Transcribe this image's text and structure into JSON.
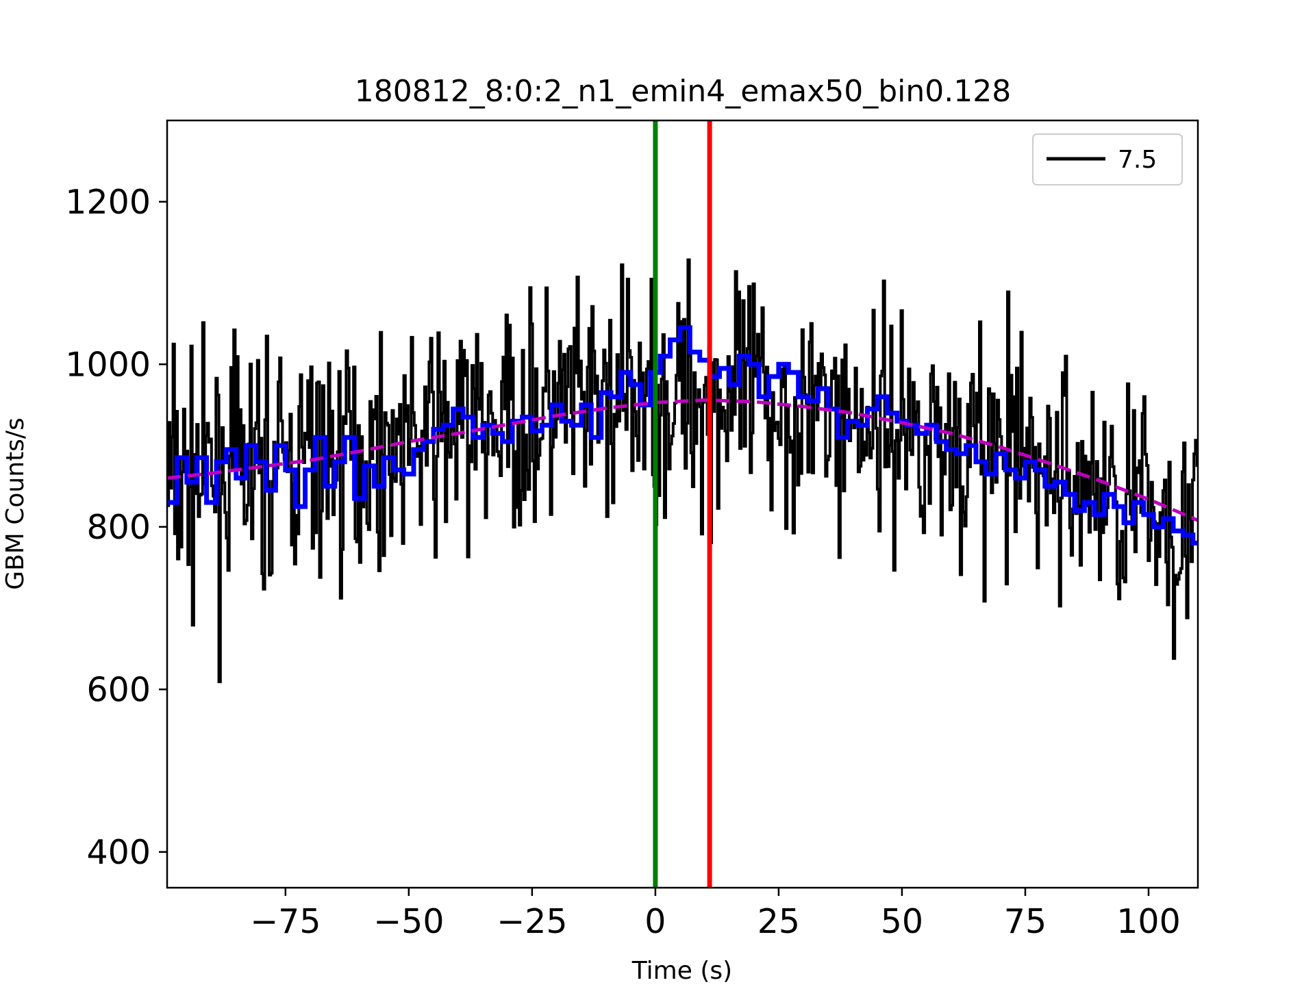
{
  "chart_data": {
    "type": "line",
    "title": "180812_8:0:2_n1_emin4_emax50_bin0.128",
    "xlabel": "Time (s)",
    "ylabel": "GBM Counts/s",
    "xlim": [
      -99,
      110
    ],
    "ylim": [
      356,
      1300
    ],
    "xticks": [
      -75,
      -50,
      -25,
      0,
      25,
      50,
      75,
      100
    ],
    "xtick_labels": [
      "−75",
      "−50",
      "−25",
      "0",
      "25",
      "50",
      "75",
      "100"
    ],
    "yticks": [
      400,
      600,
      800,
      1000,
      1200
    ],
    "ytick_labels": [
      "400",
      "600",
      "800",
      "1000",
      "1200"
    ],
    "grid": false,
    "legend": {
      "placement": "top-right",
      "entries": [
        {
          "label": "7.5",
          "color": "#000000"
        }
      ]
    },
    "vertical_lines": [
      {
        "x": 0,
        "color": "#008000"
      },
      {
        "x": 11,
        "color": "#ff0000"
      }
    ],
    "series": [
      {
        "role": "counts",
        "color": "#000000",
        "style": "solid",
        "bin_width": 0.128,
        "trend": [
          [
            -99,
            858
          ],
          [
            -75,
            874
          ],
          [
            -50,
            905
          ],
          [
            -25,
            935
          ],
          [
            0,
            958
          ],
          [
            10,
            962
          ],
          [
            25,
            950
          ],
          [
            50,
            925
          ],
          [
            75,
            880
          ],
          [
            100,
            820
          ],
          [
            110,
            806
          ]
        ],
        "noise_sd": 95
      },
      {
        "role": "smoothed",
        "color": "#0000ff",
        "style": "step",
        "points": [
          [
            -99,
            830
          ],
          [
            -97,
            885
          ],
          [
            -95,
            855
          ],
          [
            -93,
            885
          ],
          [
            -91,
            830
          ],
          [
            -89,
            880
          ],
          [
            -87,
            895
          ],
          [
            -85,
            860
          ],
          [
            -83,
            900
          ],
          [
            -81,
            880
          ],
          [
            -79,
            845
          ],
          [
            -77,
            900
          ],
          [
            -75,
            870
          ],
          [
            -73,
            825
          ],
          [
            -71,
            870
          ],
          [
            -69,
            910
          ],
          [
            -67,
            850
          ],
          [
            -65,
            880
          ],
          [
            -63,
            910
          ],
          [
            -61,
            835
          ],
          [
            -59,
            875
          ],
          [
            -57,
            850
          ],
          [
            -55,
            885
          ],
          [
            -53,
            870
          ],
          [
            -51,
            865
          ],
          [
            -49,
            895
          ],
          [
            -47,
            905
          ],
          [
            -45,
            920
          ],
          [
            -43,
            925
          ],
          [
            -41,
            945
          ],
          [
            -39,
            935
          ],
          [
            -37,
            910
          ],
          [
            -35,
            925
          ],
          [
            -33,
            915
          ],
          [
            -31,
            905
          ],
          [
            -29,
            930
          ],
          [
            -27,
            935
          ],
          [
            -25,
            918
          ],
          [
            -23,
            925
          ],
          [
            -21,
            950
          ],
          [
            -19,
            930
          ],
          [
            -17,
            925
          ],
          [
            -15,
            950
          ],
          [
            -13,
            910
          ],
          [
            -11,
            965
          ],
          [
            -9,
            960
          ],
          [
            -7,
            990
          ],
          [
            -5,
            975
          ],
          [
            -3,
            950
          ],
          [
            -1,
            990
          ],
          [
            1,
            1010
          ],
          [
            3,
            1030
          ],
          [
            5,
            1045
          ],
          [
            7,
            1015
          ],
          [
            9,
            1005
          ],
          [
            11,
            985
          ],
          [
            13,
            995
          ],
          [
            15,
            975
          ],
          [
            17,
            1010
          ],
          [
            19,
            1000
          ],
          [
            21,
            960
          ],
          [
            23,
            985
          ],
          [
            25,
            1000
          ],
          [
            27,
            990
          ],
          [
            29,
            960
          ],
          [
            31,
            955
          ],
          [
            33,
            970
          ],
          [
            35,
            945
          ],
          [
            37,
            910
          ],
          [
            39,
            930
          ],
          [
            41,
            925
          ],
          [
            43,
            945
          ],
          [
            45,
            960
          ],
          [
            47,
            940
          ],
          [
            49,
            930
          ],
          [
            51,
            925
          ],
          [
            53,
            915
          ],
          [
            55,
            925
          ],
          [
            57,
            905
          ],
          [
            59,
            895
          ],
          [
            61,
            890
          ],
          [
            63,
            900
          ],
          [
            65,
            880
          ],
          [
            67,
            865
          ],
          [
            69,
            890
          ],
          [
            71,
            870
          ],
          [
            73,
            860
          ],
          [
            75,
            880
          ],
          [
            77,
            870
          ],
          [
            79,
            850
          ],
          [
            81,
            855
          ],
          [
            83,
            840
          ],
          [
            85,
            820
          ],
          [
            87,
            830
          ],
          [
            89,
            815
          ],
          [
            91,
            840
          ],
          [
            93,
            825
          ],
          [
            95,
            805
          ],
          [
            97,
            830
          ],
          [
            99,
            815
          ],
          [
            101,
            800
          ],
          [
            103,
            810
          ],
          [
            105,
            795
          ],
          [
            107,
            790
          ],
          [
            109,
            780
          ]
        ]
      },
      {
        "role": "background",
        "color": "#bf00bf",
        "style": "dashed",
        "points": [
          [
            -99,
            860
          ],
          [
            -90,
            866
          ],
          [
            -80,
            874
          ],
          [
            -70,
            882
          ],
          [
            -60,
            893
          ],
          [
            -50,
            905
          ],
          [
            -40,
            915
          ],
          [
            -30,
            926
          ],
          [
            -20,
            937
          ],
          [
            -10,
            946
          ],
          [
            0,
            953
          ],
          [
            10,
            956
          ],
          [
            20,
            954
          ],
          [
            30,
            948
          ],
          [
            40,
            940
          ],
          [
            50,
            928
          ],
          [
            60,
            915
          ],
          [
            70,
            898
          ],
          [
            80,
            878
          ],
          [
            90,
            857
          ],
          [
            100,
            834
          ],
          [
            110,
            808
          ]
        ]
      }
    ]
  }
}
